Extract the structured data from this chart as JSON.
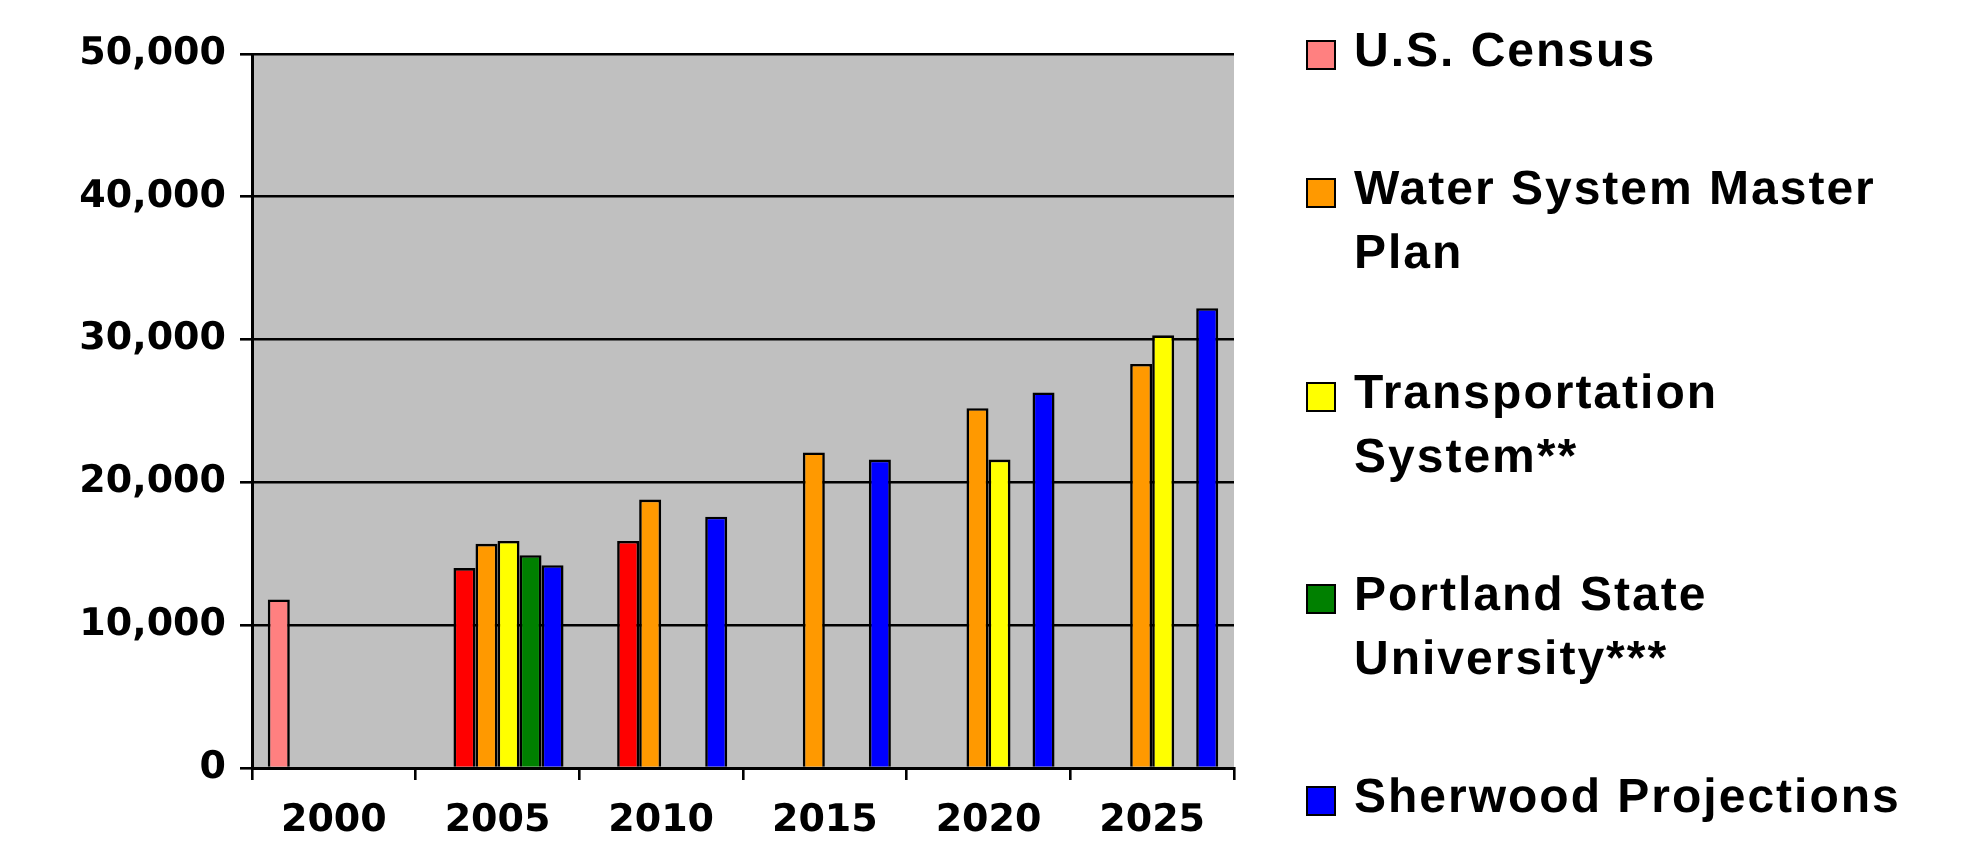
{
  "chart_data": {
    "type": "bar",
    "categories": [
      "2000",
      "2005",
      "2010",
      "2015",
      "2020",
      "2025"
    ],
    "series": [
      {
        "name": "U.S. Census",
        "color": "#ff8080",
        "values": [
          11800,
          null,
          null,
          null,
          null,
          null
        ]
      },
      {
        "color": "#ff0000",
        "values": [
          null,
          14000,
          15900,
          null,
          null,
          null
        ]
      },
      {
        "name": "Water System Master Plan",
        "color": "#ff9900",
        "values": [
          null,
          15700,
          18800,
          22100,
          25200,
          28300
        ]
      },
      {
        "name": "Transportation System**",
        "color": "#ffff00",
        "values": [
          null,
          15900,
          null,
          null,
          21600,
          30300
        ]
      },
      {
        "name": "Portland State University***",
        "color": "#008000",
        "values": [
          null,
          14900,
          null,
          null,
          null,
          null
        ]
      },
      {
        "name": "Sherwood Projections",
        "color": "#0000ff",
        "values": [
          null,
          14200,
          17600,
          21600,
          26300,
          32200
        ]
      }
    ],
    "ylim": [
      0,
      50000
    ],
    "yticks": [
      0,
      {
        "value": 10000,
        "label": "10,000"
      },
      {
        "value": 20000,
        "label": "20,000"
      },
      {
        "value": 30000,
        "label": "30,000"
      },
      {
        "value": 40000,
        "label": "40,000"
      },
      {
        "value": 50000,
        "label": "50,000"
      }
    ],
    "grid": "y",
    "legend": "right"
  }
}
